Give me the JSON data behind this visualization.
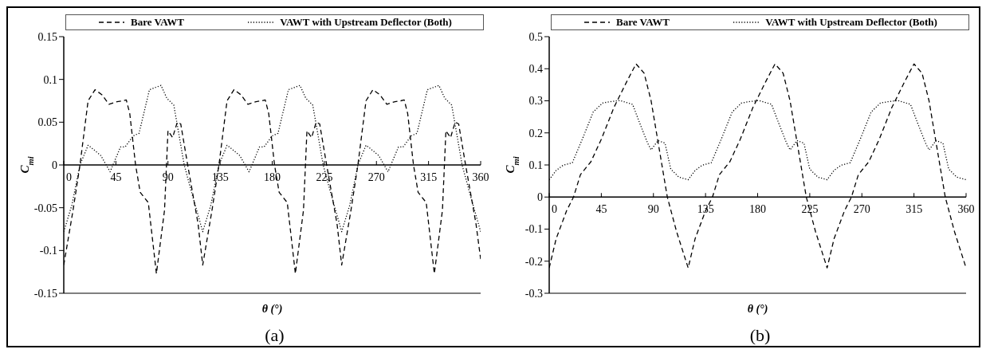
{
  "chart_data": [
    {
      "type": "line",
      "xlabel": "θ (°)",
      "ylabel": "C$_{mi}$",
      "annotations": [
        "(a)"
      ],
      "xlim": [
        0,
        360
      ],
      "xticks": [
        0,
        45,
        90,
        135,
        180,
        225,
        270,
        315,
        360
      ],
      "ylim": [
        -0.15,
        0.15
      ],
      "yticks": [
        -0.15,
        -0.1,
        -0.05,
        0,
        0.05,
        0.1,
        0.15
      ],
      "legend": "top",
      "grid": false,
      "marker": "none",
      "series": [
        {
          "name": "Bare VAWT",
          "color": "#000000",
          "line_style": "dashed",
          "x": [
            0,
            8,
            14,
            21,
            27,
            33,
            39,
            46,
            51,
            54,
            57,
            62,
            66,
            73,
            80,
            87,
            90,
            94,
            98,
            101,
            107,
            116,
            120,
            128,
            134,
            141,
            147,
            153,
            159,
            166,
            171,
            174,
            177,
            182,
            186,
            193,
            200,
            207,
            210,
            214,
            218,
            221,
            227,
            236,
            240,
            248,
            254,
            261,
            267,
            273,
            279,
            286,
            291,
            294,
            297,
            302,
            306,
            313,
            320,
            327,
            330,
            334,
            338,
            341,
            347,
            356,
            360
          ],
          "values": [
            -0.117,
            -0.053,
            0,
            0.075,
            0.088,
            0.082,
            0.071,
            0.074,
            0.075,
            0.076,
            0.06,
            0,
            -0.032,
            -0.044,
            -0.127,
            -0.053,
            0.04,
            0.032,
            0.05,
            0.048,
            0,
            -0.069,
            -0.117,
            -0.053,
            0,
            0.075,
            0.088,
            0.082,
            0.071,
            0.074,
            0.075,
            0.076,
            0.06,
            0,
            -0.032,
            -0.044,
            -0.127,
            -0.053,
            0.04,
            0.032,
            0.05,
            0.048,
            0,
            -0.069,
            -0.117,
            -0.053,
            0,
            0.075,
            0.088,
            0.082,
            0.071,
            0.074,
            0.075,
            0.076,
            0.06,
            0,
            -0.032,
            -0.044,
            -0.127,
            -0.053,
            0.04,
            0.032,
            0.05,
            0.048,
            0,
            -0.069,
            -0.11
          ]
        },
        {
          "name": "VAWT with Upstream Deflector (Both)",
          "color": "#000000",
          "line_style": "dotted",
          "x": [
            0,
            7,
            14,
            21,
            24,
            32,
            40,
            49,
            53,
            60,
            65,
            74,
            84,
            89,
            95,
            98,
            104,
            111,
            120,
            127,
            134,
            141,
            144,
            152,
            160,
            169,
            173,
            180,
            185,
            194,
            204,
            209,
            215,
            218,
            224,
            231,
            240,
            247,
            254,
            261,
            264,
            272,
            280,
            289,
            293,
            300,
            305,
            314,
            324,
            329,
            335,
            338,
            344,
            351,
            360
          ],
          "values": [
            -0.078,
            -0.047,
            0,
            0.023,
            0.02,
            0.011,
            -0.008,
            0.021,
            0.021,
            0.034,
            0.037,
            0.088,
            0.093,
            0.078,
            0.07,
            0.047,
            0,
            -0.035,
            -0.078,
            -0.047,
            0,
            0.023,
            0.02,
            0.011,
            -0.008,
            0.021,
            0.021,
            0.034,
            0.037,
            0.088,
            0.093,
            0.078,
            0.07,
            0.047,
            0,
            -0.035,
            -0.078,
            -0.047,
            0,
            0.023,
            0.02,
            0.011,
            -0.008,
            0.021,
            0.021,
            0.034,
            0.037,
            0.088,
            0.093,
            0.078,
            0.07,
            0.047,
            0,
            -0.035,
            -0.078
          ]
        }
      ]
    },
    {
      "type": "line",
      "xlabel": "θ (°)",
      "ylabel": "C$_{mi}$",
      "annotations": [
        "(b)"
      ],
      "xlim": [
        0,
        360
      ],
      "xticks": [
        0,
        45,
        90,
        135,
        180,
        225,
        270,
        315,
        360
      ],
      "ylim": [
        -0.3,
        0.5
      ],
      "yticks": [
        -0.3,
        -0.2,
        -0.1,
        0,
        0.1,
        0.2,
        0.3,
        0.4,
        0.5
      ],
      "legend": "top",
      "grid": false,
      "marker": "none",
      "series": [
        {
          "name": "Bare VAWT",
          "color": "#000000",
          "line_style": "dashed",
          "x": [
            0,
            6,
            15,
            21,
            27,
            36,
            45,
            56,
            67,
            75,
            82,
            88,
            95,
            102,
            110,
            120,
            126,
            135,
            141,
            147,
            156,
            165,
            176,
            187,
            195,
            202,
            208,
            215,
            222,
            230,
            240,
            246,
            255,
            261,
            267,
            276,
            285,
            296,
            307,
            315,
            322,
            328,
            335,
            342,
            350,
            360
          ],
          "values": [
            -0.221,
            -0.13,
            -0.043,
            0,
            0.07,
            0.11,
            0.18,
            0.28,
            0.36,
            0.415,
            0.386,
            0.3,
            0.15,
            0,
            -0.108,
            -0.221,
            -0.13,
            -0.043,
            0,
            0.07,
            0.11,
            0.18,
            0.28,
            0.36,
            0.415,
            0.386,
            0.3,
            0.15,
            0,
            -0.108,
            -0.221,
            -0.13,
            -0.043,
            0,
            0.07,
            0.11,
            0.18,
            0.28,
            0.36,
            0.415,
            0.386,
            0.3,
            0.15,
            0,
            -0.108,
            -0.221
          ]
        },
        {
          "name": "VAWT with Upstream Deflector (Both)",
          "color": "#000000",
          "line_style": "dotted",
          "x": [
            0,
            6,
            12,
            20,
            29,
            38,
            46,
            52,
            61,
            72,
            78,
            85,
            88,
            94,
            100,
            105,
            112,
            120,
            126,
            132,
            140,
            149,
            158,
            166,
            172,
            181,
            192,
            198,
            205,
            208,
            214,
            220,
            225,
            232,
            240,
            246,
            252,
            260,
            269,
            278,
            286,
            292,
            301,
            312,
            318,
            325,
            328,
            334,
            340,
            345,
            352,
            360
          ],
          "values": [
            0.054,
            0.083,
            0.099,
            0.107,
            0.184,
            0.265,
            0.293,
            0.297,
            0.301,
            0.289,
            0.232,
            0.168,
            0.147,
            0.176,
            0.168,
            0.087,
            0.062,
            0.054,
            0.083,
            0.099,
            0.107,
            0.184,
            0.265,
            0.293,
            0.297,
            0.301,
            0.289,
            0.232,
            0.168,
            0.147,
            0.176,
            0.168,
            0.087,
            0.062,
            0.054,
            0.083,
            0.099,
            0.107,
            0.184,
            0.265,
            0.293,
            0.297,
            0.301,
            0.289,
            0.232,
            0.168,
            0.147,
            0.176,
            0.168,
            0.087,
            0.062,
            0.054
          ]
        }
      ]
    }
  ]
}
